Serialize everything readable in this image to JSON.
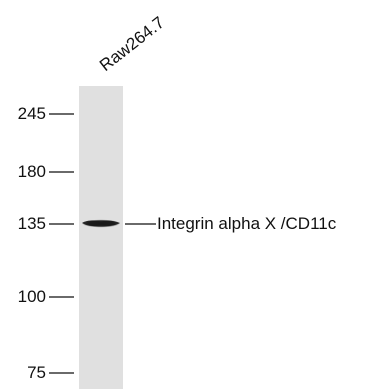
{
  "lane": {
    "label": "Raw264.7"
  },
  "markers": [
    {
      "kda": "245"
    },
    {
      "kda": "180"
    },
    {
      "kda": "135"
    },
    {
      "kda": "100"
    },
    {
      "kda": "75"
    }
  ],
  "band": {
    "label": "Integrin alpha X /CD11c",
    "marker_kda": "135"
  },
  "colors": {
    "lane_background": "#e0e0e0",
    "band": "#1a1a1a",
    "text": "#111111",
    "tick": "#111111"
  }
}
